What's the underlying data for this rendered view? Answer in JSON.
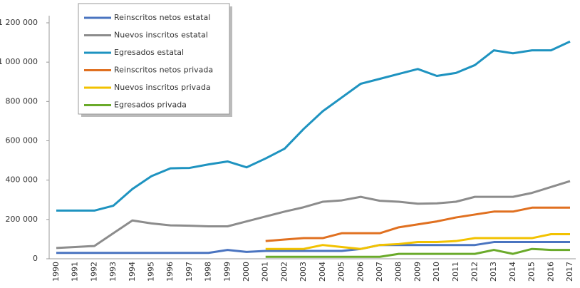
{
  "chart_data": {
    "type": "line",
    "categories": [
      "1990",
      "1991",
      "1992",
      "1993",
      "1994",
      "1995",
      "1996",
      "1997",
      "1998",
      "1999",
      "2000",
      "2001",
      "2002",
      "2003",
      "2004",
      "2005",
      "2006",
      "2007",
      "2008",
      "2009",
      "2010",
      "2011",
      "2012",
      "2013",
      "2014",
      "2015",
      "2016",
      "2017"
    ],
    "series": [
      {
        "name": "Reinscritos netos estatal",
        "color": "#4a74c0",
        "values": [
          30000,
          30000,
          30000,
          30000,
          30000,
          30000,
          30000,
          30000,
          30000,
          45000,
          35000,
          40000,
          40000,
          40000,
          40000,
          40000,
          50000,
          70000,
          70000,
          70000,
          70000,
          70000,
          70000,
          85000,
          85000,
          85000,
          85000,
          85000
        ]
      },
      {
        "name": "Nuevos inscritos estatal",
        "color": "#8c8c8c",
        "values": [
          55000,
          60000,
          65000,
          130000,
          195000,
          180000,
          170000,
          168000,
          165000,
          165000,
          190000,
          215000,
          240000,
          262000,
          290000,
          297000,
          315000,
          295000,
          290000,
          280000,
          282000,
          290000,
          315000,
          315000,
          315000,
          335000,
          365000,
          395000
        ]
      },
      {
        "name": "Egresados estatal",
        "color": "#1e93c0",
        "values": [
          245000,
          245000,
          245000,
          270000,
          355000,
          420000,
          460000,
          462000,
          480000,
          495000,
          465000,
          510000,
          560000,
          660000,
          750000,
          820000,
          890000,
          915000,
          940000,
          965000,
          930000,
          945000,
          985000,
          1060000,
          1045000,
          1060000,
          1060000,
          1105000
        ]
      },
      {
        "name": "Reinscritos netos privada",
        "color": "#e07020",
        "values": [
          null,
          null,
          null,
          null,
          null,
          null,
          null,
          null,
          null,
          null,
          null,
          90000,
          98000,
          105000,
          105000,
          130000,
          130000,
          130000,
          160000,
          175000,
          190000,
          210000,
          225000,
          240000,
          240000,
          260000,
          260000,
          260000
        ]
      },
      {
        "name": "Nuevos inscritos privada",
        "color": "#f2c200",
        "values": [
          null,
          null,
          null,
          null,
          null,
          null,
          null,
          null,
          null,
          null,
          null,
          50000,
          50000,
          50000,
          70000,
          60000,
          50000,
          70000,
          75000,
          85000,
          85000,
          90000,
          105000,
          105000,
          105000,
          105000,
          125000,
          125000
        ]
      },
      {
        "name": "Egresados privada",
        "color": "#6aaa2a",
        "values": [
          null,
          null,
          null,
          null,
          null,
          null,
          null,
          null,
          null,
          null,
          null,
          10000,
          10000,
          10000,
          10000,
          10000,
          10000,
          10000,
          25000,
          25000,
          25000,
          25000,
          25000,
          45000,
          25000,
          50000,
          45000,
          45000
        ]
      }
    ],
    "ylim": [
      0,
      1200000
    ],
    "yticks": [
      0,
      {
        "value": 200000,
        "label": "200 000"
      },
      {
        "value": 400000,
        "label": "400 000"
      },
      {
        "value": 600000,
        "label": "600 000"
      },
      {
        "value": 800000,
        "label": "800 000"
      },
      {
        "value": 1000000,
        "label": "1 000 000"
      },
      {
        "value": 1200000,
        "label": "1 200 000"
      }
    ],
    "legend": "top-left"
  }
}
